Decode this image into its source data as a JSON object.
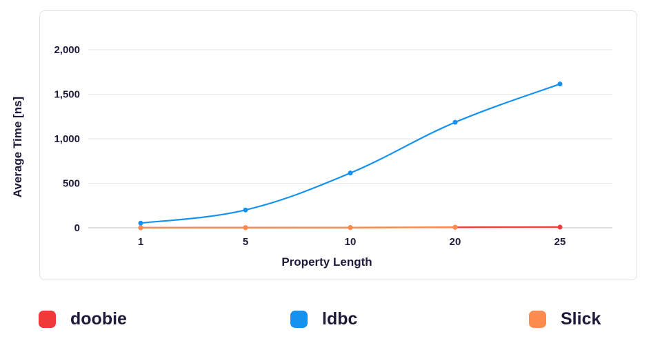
{
  "chart_data": {
    "type": "line",
    "categories": [
      "1",
      "5",
      "10",
      "20",
      "25"
    ],
    "series": [
      {
        "name": "doobie",
        "color": "#f03a3a",
        "values": [
          1,
          2,
          3,
          6,
          8
        ]
      },
      {
        "name": "ldbc",
        "color": "#1591f0",
        "values": [
          52,
          200,
          615,
          1185,
          1615
        ]
      },
      {
        "name": "Slick",
        "color": "#fb8c4d",
        "values": [
          1,
          2,
          3,
          6,
          null
        ]
      }
    ],
    "xlabel": "Property Length",
    "ylabel": "Average Time [ns]",
    "ylim": [
      0,
      2000
    ],
    "yticks": [
      "0",
      "500",
      "1,000",
      "1,500",
      "2,000"
    ],
    "ytick_values": [
      0,
      500,
      1000,
      1500,
      2000
    ],
    "grid": true,
    "legend_position": "bottom"
  }
}
